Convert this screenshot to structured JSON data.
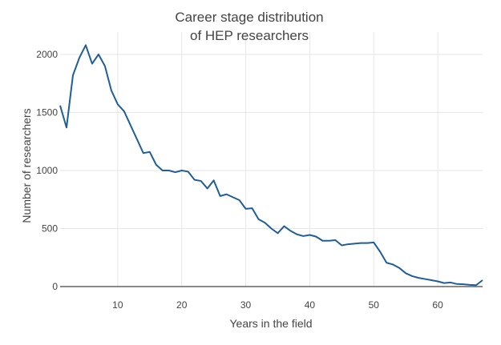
{
  "chart_data": {
    "type": "line",
    "title_lines": [
      "Career stage distribution",
      "of HEP researchers"
    ],
    "xlabel": "Years in the field",
    "ylabel": "Number of researchers",
    "xlim": [
      1,
      67
    ],
    "ylim": [
      0,
      2200
    ],
    "x_ticks": [
      10,
      20,
      30,
      40,
      50,
      60
    ],
    "y_ticks": [
      0,
      500,
      1000,
      1500,
      2000
    ],
    "grid": true,
    "legend": "none",
    "line_color": "#1f5e99",
    "x": [
      1,
      2,
      3,
      4,
      5,
      6,
      7,
      8,
      9,
      10,
      11,
      12,
      13,
      14,
      15,
      16,
      17,
      18,
      19,
      20,
      21,
      22,
      23,
      24,
      25,
      26,
      27,
      28,
      29,
      30,
      31,
      32,
      33,
      34,
      35,
      36,
      37,
      38,
      39,
      40,
      41,
      42,
      43,
      44,
      45,
      46,
      47,
      48,
      49,
      50,
      51,
      52,
      53,
      54,
      55,
      56,
      57,
      58,
      59,
      60,
      61,
      62,
      63,
      64,
      65,
      66,
      67
    ],
    "y": [
      1560,
      1370,
      1820,
      1970,
      2080,
      1920,
      2000,
      1900,
      1690,
      1570,
      1510,
      1390,
      1270,
      1150,
      1160,
      1050,
      1000,
      1000,
      985,
      1000,
      990,
      920,
      910,
      845,
      915,
      780,
      795,
      770,
      745,
      670,
      675,
      580,
      550,
      500,
      460,
      520,
      480,
      450,
      435,
      445,
      430,
      395,
      395,
      400,
      355,
      365,
      370,
      375,
      375,
      380,
      300,
      205,
      190,
      160,
      115,
      90,
      75,
      65,
      55,
      45,
      30,
      35,
      22,
      20,
      15,
      12,
      55
    ]
  }
}
